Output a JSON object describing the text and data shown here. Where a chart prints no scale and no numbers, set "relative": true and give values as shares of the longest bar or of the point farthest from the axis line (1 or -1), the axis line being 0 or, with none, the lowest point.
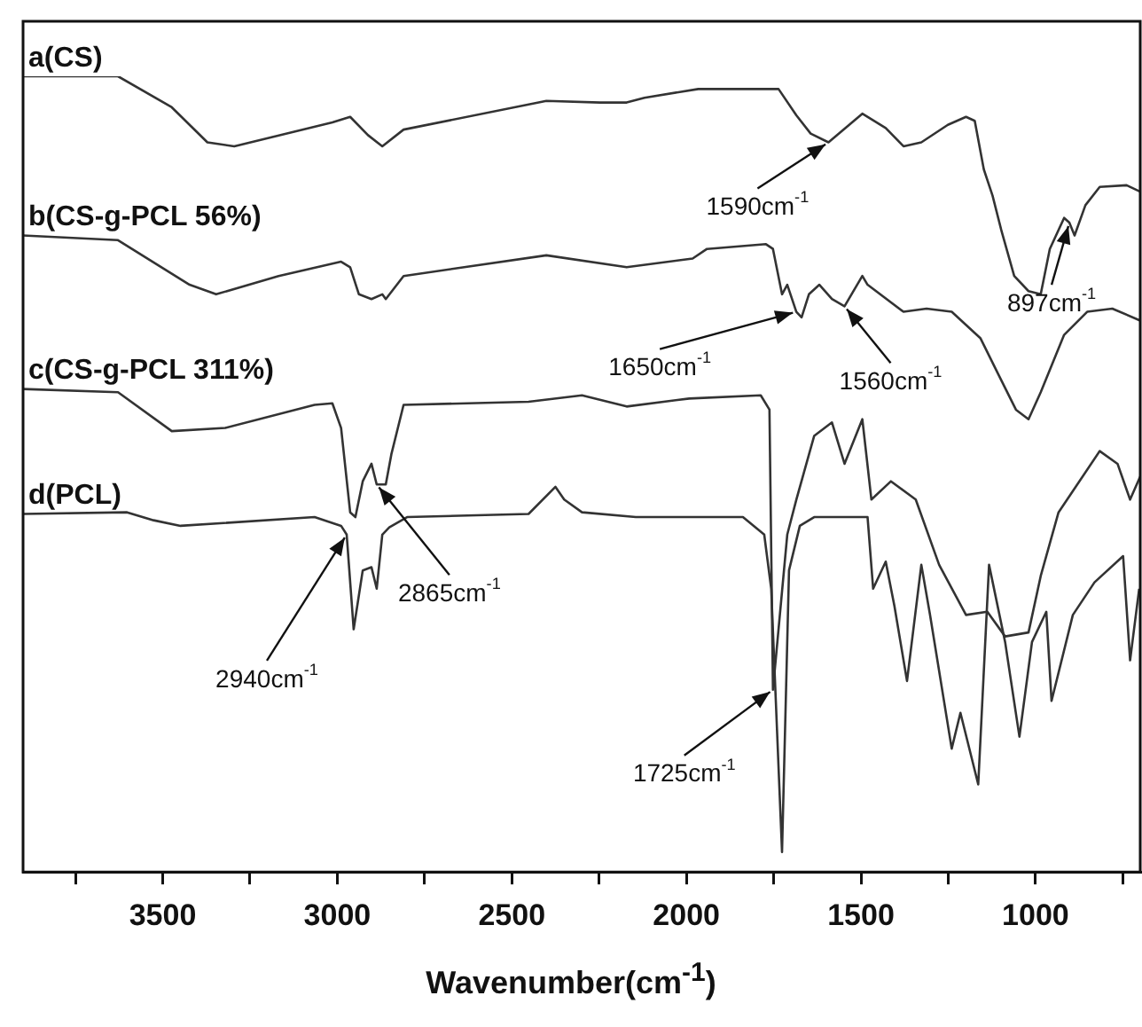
{
  "chart_data": {
    "type": "line",
    "relative": true,
    "xlabel": "Wavenumber(cm$^{-1}$)",
    "xlim": [
      3900,
      700
    ],
    "xticks": [
      {
        "value": 3750,
        "label": null
      },
      3500,
      {
        "value": 3250,
        "label": null
      },
      3000,
      {
        "value": 2750,
        "label": null
      },
      2500,
      {
        "value": 2250,
        "label": null
      },
      2000,
      {
        "value": 1750,
        "label": null
      },
      1500,
      {
        "value": 1250,
        "label": null
      },
      1000,
      {
        "value": 750,
        "label": null
      }
    ],
    "grid": false,
    "legend": false,
    "marker": "none",
    "line_style": "solid",
    "series": [
      {
        "name": "a(CS)",
        "color": "#333333",
        "x": [
          3900,
          3628,
          3474,
          3372,
          3295,
          3014,
          2963,
          2912,
          2871,
          2810,
          2401,
          2247,
          2171,
          2120,
          1966,
          1736,
          1685,
          1644,
          1593,
          1496,
          1429,
          1378,
          1327,
          1251,
          1199,
          1174,
          1148,
          1123,
          1097,
          1061,
          1020,
          985,
          959,
          918,
          903,
          888,
          857,
          816,
          739,
          700
        ],
        "values": [
          1,
          1,
          0.961,
          0.917,
          0.912,
          0.942,
          0.949,
          0.926,
          0.912,
          0.933,
          0.969,
          0.967,
          0.967,
          0.973,
          0.984,
          0.984,
          0.951,
          0.928,
          0.917,
          0.953,
          0.935,
          0.912,
          0.917,
          0.939,
          0.949,
          0.944,
          0.883,
          0.85,
          0.805,
          0.749,
          0.73,
          0.726,
          0.783,
          0.822,
          0.816,
          0.8,
          0.838,
          0.861,
          0.863,
          0.855
        ]
      },
      {
        "name": "b(CS-g-PCL 56%)",
        "color": "#333333",
        "x": [
          3900,
          3628,
          3423,
          3347,
          3168,
          2989,
          2963,
          2938,
          2902,
          2871,
          2861,
          2810,
          2401,
          2171,
          1982,
          1941,
          1772,
          1752,
          1726,
          1711,
          1685,
          1670,
          1649,
          1619,
          1583,
          1547,
          1496,
          1481,
          1378,
          1312,
          1240,
          1158,
          1107,
          1056,
          1020,
          985,
          918,
          852,
          780,
          700
        ],
        "values": [
          0.8,
          0.794,
          0.738,
          0.726,
          0.749,
          0.767,
          0.76,
          0.726,
          0.72,
          0.726,
          0.72,
          0.749,
          0.775,
          0.76,
          0.771,
          0.783,
          0.789,
          0.783,
          0.726,
          0.738,
          0.704,
          0.697,
          0.726,
          0.738,
          0.72,
          0.711,
          0.749,
          0.738,
          0.704,
          0.708,
          0.704,
          0.671,
          0.626,
          0.581,
          0.569,
          0.603,
          0.675,
          0.704,
          0.708,
          0.693
        ]
      },
      {
        "name": "c(CS-g-PCL 311%)",
        "color": "#333333",
        "x": [
          3900,
          3628,
          3474,
          3321,
          3065,
          3014,
          2989,
          2963,
          2948,
          2927,
          2902,
          2887,
          2861,
          2845,
          2810,
          2452,
          2299,
          2171,
          1992,
          1787,
          1762,
          1752,
          1711,
          1685,
          1634,
          1583,
          1547,
          1496,
          1470,
          1414,
          1343,
          1276,
          1199,
          1138,
          1087,
          1020,
          985,
          934,
          816,
          765,
          729,
          700
        ],
        "values": [
          0.607,
          0.603,
          0.554,
          0.558,
          0.587,
          0.589,
          0.558,
          0.452,
          0.446,
          0.491,
          0.513,
          0.487,
          0.487,
          0.525,
          0.587,
          0.591,
          0.599,
          0.585,
          0.595,
          0.599,
          0.581,
          0.229,
          0.424,
          0.468,
          0.548,
          0.565,
          0.513,
          0.569,
          0.468,
          0.491,
          0.468,
          0.386,
          0.323,
          0.327,
          0.296,
          0.301,
          0.372,
          0.452,
          0.529,
          0.513,
          0.468,
          0.497
        ]
      },
      {
        "name": "d(PCL)",
        "color": "#333333",
        "x": [
          3900,
          3602,
          3526,
          3449,
          3065,
          2989,
          2973,
          2953,
          2927,
          2902,
          2887,
          2871,
          2851,
          2800,
          2452,
          2375,
          2350,
          2299,
          2145,
          1838,
          1777,
          1757,
          1726,
          1706,
          1675,
          1634,
          1481,
          1465,
          1429,
          1404,
          1368,
          1327,
          1302,
          1240,
          1215,
          1164,
          1133,
          1087,
          1046,
          1010,
          969,
          954,
          893,
          831,
          749,
          729,
          703
        ],
        "values": [
          0.45,
          0.452,
          0.442,
          0.435,
          0.446,
          0.435,
          0.424,
          0.305,
          0.379,
          0.383,
          0.356,
          0.424,
          0.433,
          0.446,
          0.45,
          0.484,
          0.468,
          0.452,
          0.446,
          0.446,
          0.424,
          0.356,
          0.025,
          0.379,
          0.435,
          0.446,
          0.446,
          0.356,
          0.39,
          0.334,
          0.24,
          0.386,
          0.323,
          0.155,
          0.2,
          0.11,
          0.386,
          0.289,
          0.17,
          0.289,
          0.327,
          0.215,
          0.323,
          0.364,
          0.397,
          0.266,
          0.356
        ]
      }
    ],
    "annotations": [
      {
        "text": "1590cm$^{-1}$",
        "x": 1593,
        "y": 0.917
      },
      {
        "text": "897cm$^{-1}$",
        "x": 903,
        "y": 0.816
      },
      {
        "text": "1650cm$^{-1}$",
        "x": 1685,
        "y": 0.704
      },
      {
        "text": "1560cm$^{-1}$",
        "x": 1547,
        "y": 0.711
      },
      {
        "text": "2940cm$^{-1}$",
        "x": 2973,
        "y": 0.424
      },
      {
        "text": "2865cm$^{-1}$",
        "x": 2887,
        "y": 0.487
      },
      {
        "text": "1725cm$^{-1}$",
        "x": 1752,
        "y": 0.229
      }
    ]
  }
}
